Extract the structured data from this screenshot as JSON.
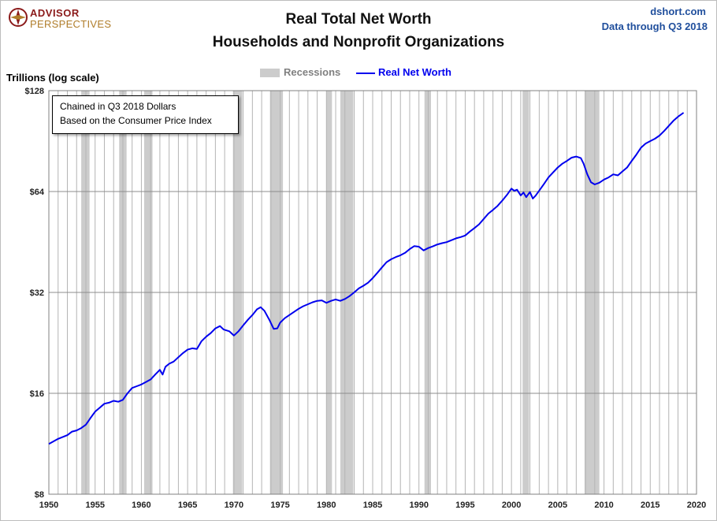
{
  "brand": {
    "line1": "ADVISOR",
    "line2": "PERSPECTIVES"
  },
  "header": {
    "title_line1": "Real Total Net Worth",
    "title_line2": "Households and Nonprofit Organizations",
    "source": "dshort.com",
    "data_through": "Data through Q3 2018"
  },
  "annotation": {
    "line1": "Chained in Q3 2018  Dollars",
    "line2": "Based on the Consumer Price Index"
  },
  "colors": {
    "line": "#0000ee",
    "recession": "#cccccc",
    "grid": "#b4b4b4"
  },
  "chart_data": {
    "type": "line",
    "ylabel": "Trillions (log scale)",
    "y_scale": "log2",
    "ylim": [
      8,
      128
    ],
    "xlim": [
      1950,
      2020
    ],
    "y_ticks": [
      8,
      16,
      32,
      64,
      128
    ],
    "y_tick_labels": [
      "$8",
      "$16",
      "$32",
      "$64",
      "$128"
    ],
    "x_ticks": [
      1950,
      1955,
      1960,
      1965,
      1970,
      1975,
      1980,
      1985,
      1990,
      1995,
      2000,
      2005,
      2010,
      2015,
      2020
    ],
    "x_tick_labels": [
      "1950",
      "1955",
      "1960",
      "1965",
      "1970",
      "1975",
      "1980",
      "1985",
      "1990",
      "1995",
      "2000",
      "2005",
      "2010",
      "2015",
      "2020"
    ],
    "grid": true,
    "legend": {
      "position": "top-center",
      "entries": [
        "Recessions",
        "Real Net Worth"
      ]
    },
    "recessions": [
      [
        1953.5,
        1954.4
      ],
      [
        1957.6,
        1958.4
      ],
      [
        1960.3,
        1961.2
      ],
      [
        1969.9,
        1970.9
      ],
      [
        1973.9,
        1975.3
      ],
      [
        1980.0,
        1980.6
      ],
      [
        1981.5,
        1982.9
      ],
      [
        1990.6,
        1991.3
      ],
      [
        2001.2,
        2001.9
      ],
      [
        2007.9,
        2009.5
      ]
    ],
    "series": [
      {
        "name": "Real Net Worth",
        "x": [
          1950.0,
          1951.0,
          1952.0,
          1952.5,
          1953.0,
          1953.5,
          1954.0,
          1954.5,
          1955.0,
          1955.5,
          1956.0,
          1956.5,
          1957.0,
          1957.5,
          1958.0,
          1958.5,
          1959.0,
          1959.5,
          1960.0,
          1960.5,
          1961.0,
          1961.5,
          1962.0,
          1962.3,
          1962.6,
          1963.0,
          1963.5,
          1964.0,
          1964.5,
          1965.0,
          1965.5,
          1966.0,
          1966.5,
          1967.0,
          1967.5,
          1968.0,
          1968.5,
          1968.9,
          1969.5,
          1970.0,
          1970.5,
          1971.0,
          1971.5,
          1972.0,
          1972.5,
          1972.9,
          1973.3,
          1973.8,
          1974.3,
          1974.7,
          1975.0,
          1975.5,
          1976.0,
          1976.5,
          1977.0,
          1977.5,
          1978.0,
          1978.5,
          1979.0,
          1979.5,
          1980.0,
          1980.5,
          1981.0,
          1981.5,
          1982.0,
          1982.5,
          1983.0,
          1983.5,
          1984.0,
          1984.5,
          1985.0,
          1985.5,
          1986.0,
          1986.5,
          1987.0,
          1987.5,
          1988.0,
          1988.5,
          1989.0,
          1989.5,
          1990.0,
          1990.5,
          1991.0,
          1991.5,
          1992.0,
          1992.5,
          1993.0,
          1993.5,
          1994.0,
          1994.5,
          1995.0,
          1995.5,
          1996.0,
          1996.5,
          1997.0,
          1997.5,
          1998.0,
          1998.5,
          1999.0,
          1999.5,
          2000.0,
          2000.3,
          2000.6,
          2001.0,
          2001.3,
          2001.6,
          2002.0,
          2002.3,
          2002.6,
          2003.0,
          2003.5,
          2004.0,
          2004.5,
          2005.0,
          2005.5,
          2006.0,
          2006.5,
          2007.0,
          2007.5,
          2007.8,
          2008.2,
          2008.6,
          2009.0,
          2009.5,
          2010.0,
          2010.5,
          2011.0,
          2011.5,
          2012.0,
          2012.5,
          2013.0,
          2013.5,
          2014.0,
          2014.5,
          2015.0,
          2015.5,
          2016.0,
          2016.5,
          2017.0,
          2017.5,
          2018.0,
          2018.6
        ],
        "y": [
          11.3,
          11.7,
          12.0,
          12.3,
          12.4,
          12.6,
          12.9,
          13.5,
          14.1,
          14.5,
          14.9,
          15.0,
          15.2,
          15.1,
          15.3,
          16.0,
          16.6,
          16.8,
          17.0,
          17.3,
          17.6,
          18.2,
          18.8,
          18.2,
          19.2,
          19.6,
          19.9,
          20.5,
          21.1,
          21.6,
          21.8,
          21.7,
          22.9,
          23.6,
          24.2,
          25.0,
          25.4,
          24.8,
          24.5,
          23.8,
          24.5,
          25.5,
          26.5,
          27.4,
          28.5,
          28.9,
          28.2,
          26.6,
          24.9,
          25.0,
          26.0,
          26.8,
          27.4,
          28.0,
          28.6,
          29.1,
          29.5,
          29.9,
          30.2,
          30.3,
          29.8,
          30.2,
          30.5,
          30.2,
          30.6,
          31.2,
          32.0,
          32.9,
          33.5,
          34.2,
          35.3,
          36.6,
          38.0,
          39.4,
          40.2,
          40.8,
          41.3,
          42.0,
          43.1,
          44.0,
          43.8,
          42.7,
          43.4,
          43.9,
          44.5,
          44.9,
          45.2,
          45.8,
          46.4,
          46.8,
          47.3,
          48.6,
          49.8,
          51.1,
          53.0,
          55.0,
          56.4,
          58.0,
          60.1,
          62.5,
          65.3,
          64.3,
          64.8,
          62.3,
          63.6,
          61.6,
          63.8,
          61.0,
          62.2,
          64.4,
          67.3,
          70.5,
          73.0,
          75.5,
          77.5,
          79.0,
          80.8,
          81.4,
          80.5,
          77.5,
          72.0,
          68.2,
          67.2,
          68.0,
          69.5,
          70.5,
          72.0,
          71.5,
          73.5,
          75.5,
          79.0,
          82.5,
          86.5,
          89.0,
          90.5,
          92.0,
          94.0,
          97.0,
          100.5,
          104.0,
          107.0,
          110.0
        ]
      }
    ]
  }
}
